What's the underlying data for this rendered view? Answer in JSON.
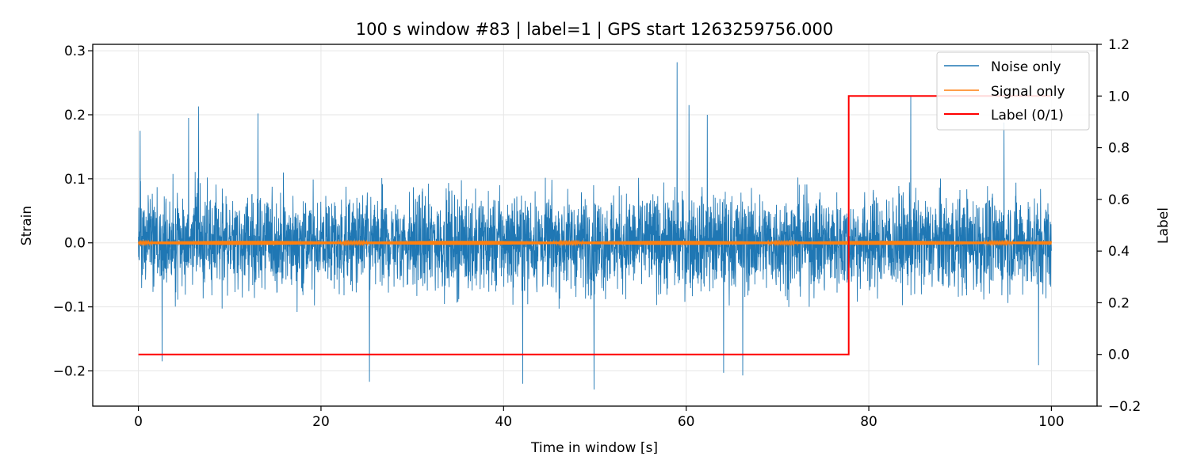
{
  "chart_data": {
    "type": "line",
    "title": "100 s window #83 | label=1 | GPS start 1263259756.000",
    "xlabel": "Time in window [s]",
    "ylabel": "Strain",
    "y2label": "Label",
    "xlim": [
      -5,
      105
    ],
    "ylim": [
      -0.255,
      0.31
    ],
    "y2lim": [
      -0.2,
      1.2
    ],
    "xticks": [
      0,
      20,
      40,
      60,
      80,
      100
    ],
    "xtick_labels": [
      "0",
      "20",
      "40",
      "60",
      "80",
      "100"
    ],
    "yticks": [
      -0.2,
      -0.1,
      0.0,
      0.1,
      0.2,
      0.3
    ],
    "ytick_labels": [
      "−0.2",
      "−0.1",
      "0.0",
      "0.1",
      "0.2",
      "0.3"
    ],
    "y2ticks": [
      -0.2,
      0.0,
      0.2,
      0.4,
      0.6,
      0.8,
      1.0,
      1.2
    ],
    "y2tick_labels": [
      "−0.2",
      "0.0",
      "0.2",
      "0.4",
      "0.6",
      "0.8",
      "1.0",
      "1.2"
    ],
    "grid": true,
    "legend_position": "top-right",
    "series": [
      {
        "name": "Noise only",
        "color": "#1f77b4",
        "axis": "left",
        "kind": "noise",
        "x_range": [
          0,
          100
        ],
        "typical_amplitude": 0.09,
        "peaks": [
          {
            "x": 0.2,
            "y": 0.175
          },
          {
            "x": 2.6,
            "y": -0.185
          },
          {
            "x": 5.5,
            "y": 0.195
          },
          {
            "x": 6.6,
            "y": 0.213
          },
          {
            "x": 13.1,
            "y": 0.202
          },
          {
            "x": 25.3,
            "y": -0.217
          },
          {
            "x": 42.1,
            "y": -0.22
          },
          {
            "x": 49.9,
            "y": -0.229
          },
          {
            "x": 59.0,
            "y": 0.282
          },
          {
            "x": 60.3,
            "y": 0.215
          },
          {
            "x": 62.3,
            "y": 0.2
          },
          {
            "x": 64.1,
            "y": -0.203
          },
          {
            "x": 66.2,
            "y": -0.207
          },
          {
            "x": 84.6,
            "y": 0.228
          },
          {
            "x": 94.8,
            "y": 0.188
          },
          {
            "x": 98.6,
            "y": -0.191
          }
        ]
      },
      {
        "name": "Signal only",
        "color": "#ff7f0e",
        "axis": "left",
        "kind": "signal",
        "x_range": [
          0,
          100
        ],
        "typical_amplitude": 0.003
      },
      {
        "name": "Label (0/1)",
        "color": "#ff0000",
        "axis": "right",
        "kind": "step",
        "x": [
          0,
          77.8,
          77.8,
          100
        ],
        "y": [
          0,
          0,
          1,
          1
        ]
      }
    ]
  }
}
